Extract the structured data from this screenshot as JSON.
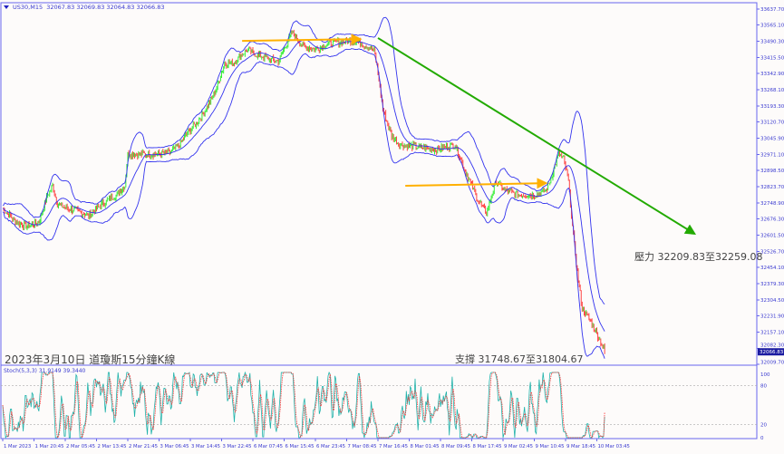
{
  "header": {
    "symbol": "US30,M15",
    "ohlc": "32067.83 32069.83 32064.83 32066.83"
  },
  "stoch_label": {
    "name": "Stoch(5,3,3)",
    "values": "31.9149 39.3440"
  },
  "notes": {
    "title": "2023年3月10日 道瓊斯15分鐘K線",
    "resistance": "壓力 32209.83至32259.08",
    "support": "支撐 31748.67至31804.67"
  },
  "colors": {
    "bull": "#33ee33",
    "bear": "#ff4444",
    "bands": "#3333ee",
    "axis": "#6666ee",
    "arrow": "#ffb000",
    "trendline": "#22aa00",
    "stoch_main": "#20b2aa",
    "stoch_signal": "#ff3030"
  },
  "chart_data": {
    "type": "candlestick",
    "symbol": "US30",
    "timeframe": "M15",
    "indicators": [
      "Bollinger Bands",
      "Stochastic(5,3,3)"
    ],
    "ylim": [
      32009.7,
      33637.7
    ],
    "y_ticks": [
      "33637.70",
      "33565.10",
      "33490.30",
      "33415.50",
      "33342.90",
      "33268.10",
      "33193.30",
      "33120.70",
      "33045.90",
      "32971.10",
      "32898.50",
      "32823.70",
      "32748.90",
      "32676.30",
      "32601.50",
      "32526.70",
      "32454.10",
      "32379.30",
      "32304.50",
      "32231.90",
      "32157.10",
      "32082.30",
      "32009.70"
    ],
    "current_price": "32066.83",
    "x_ticks": [
      "1 Mar 2023",
      "1 Mar 20:45",
      "2 Mar 05:45",
      "2 Mar 13:45",
      "2 Mar 21:45",
      "3 Mar 06:45",
      "3 Mar 14:45",
      "3 Mar 22:45",
      "6 Mar 07:45",
      "6 Mar 15:45",
      "6 Mar 23:45",
      "7 Mar 08:45",
      "7 Mar 16:45",
      "8 Mar 01:45",
      "8 Mar 09:45",
      "8 Mar 17:45",
      "9 Mar 02:45",
      "9 Mar 10:45",
      "9 Mar 18:45",
      "10 Mar 03:45"
    ],
    "bars_per_x_tick": 32,
    "close_path": [
      [
        0,
        32724
      ],
      [
        14,
        32662
      ],
      [
        23,
        32641
      ],
      [
        37,
        32662
      ],
      [
        46,
        32786
      ],
      [
        51,
        32828
      ],
      [
        56,
        32745
      ],
      [
        65,
        32724
      ],
      [
        74,
        32716
      ],
      [
        88,
        32691
      ],
      [
        102,
        32745
      ],
      [
        116,
        32786
      ],
      [
        125,
        32828
      ],
      [
        128,
        32973
      ],
      [
        134,
        32973
      ],
      [
        144,
        32973
      ],
      [
        157,
        32973
      ],
      [
        171,
        32981
      ],
      [
        181,
        33015
      ],
      [
        190,
        33077
      ],
      [
        199,
        33119
      ],
      [
        208,
        33181
      ],
      [
        218,
        33264
      ],
      [
        227,
        33389
      ],
      [
        236,
        33389
      ],
      [
        245,
        33430
      ],
      [
        250,
        33451
      ],
      [
        259,
        33430
      ],
      [
        273,
        33409
      ],
      [
        282,
        33397
      ],
      [
        292,
        33492
      ],
      [
        296,
        33534
      ],
      [
        306,
        33472
      ],
      [
        319,
        33451
      ],
      [
        333,
        33480
      ],
      [
        352,
        33492
      ],
      [
        366,
        33484
      ],
      [
        380,
        33451
      ],
      [
        384,
        33347
      ],
      [
        389,
        33181
      ],
      [
        398,
        33056
      ],
      [
        407,
        33015
      ],
      [
        426,
        33006
      ],
      [
        444,
        32994
      ],
      [
        463,
        33015
      ],
      [
        472,
        32911
      ],
      [
        486,
        32766
      ],
      [
        495,
        32703
      ],
      [
        505,
        32849
      ],
      [
        514,
        32807
      ],
      [
        528,
        32786
      ],
      [
        546,
        32786
      ],
      [
        556,
        32807
      ],
      [
        560,
        32849
      ],
      [
        569,
        32973
      ],
      [
        574,
        32952
      ],
      [
        579,
        32849
      ],
      [
        583,
        32641
      ],
      [
        588,
        32433
      ],
      [
        593,
        32267
      ],
      [
        602,
        32205
      ],
      [
        611,
        32122
      ],
      [
        616,
        32072
      ]
    ],
    "stoch_levels": [
      100,
      80,
      20,
      0
    ],
    "stoch_last": {
      "main": 31.9149,
      "signal": 39.344
    },
    "annotations": [
      {
        "type": "arrow",
        "color": "orange",
        "from": [
          245,
          33492
        ],
        "to": [
          366,
          33500
        ]
      },
      {
        "type": "arrow",
        "color": "orange",
        "from": [
          412,
          32828
        ],
        "to": [
          556,
          32840
        ]
      },
      {
        "type": "arrow",
        "color": "green",
        "from": [
          384,
          33505
        ],
        "to": [
          708,
          32608
        ]
      }
    ]
  }
}
